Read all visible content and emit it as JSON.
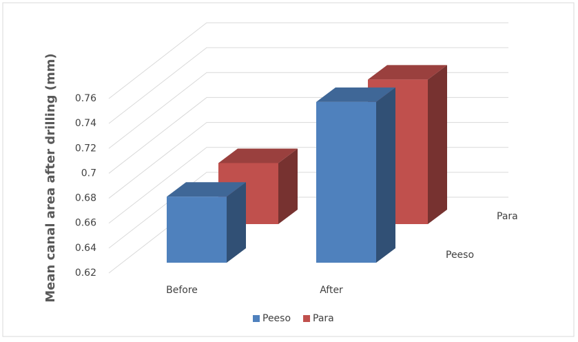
{
  "chart_data": {
    "type": "bar3d",
    "y_label": "Mean canal area after drilling (mm)",
    "categories": [
      "Before",
      "After"
    ],
    "series": [
      {
        "name": "Peeso",
        "color": "#4f81bd",
        "values": [
          0.673,
          0.749
        ]
      },
      {
        "name": "Para",
        "color": "#c0504d",
        "values": [
          0.669,
          0.736
        ]
      }
    ],
    "ylim": [
      0.62,
      0.76
    ],
    "yticks": [
      0.62,
      0.64,
      0.66,
      0.68,
      0.7,
      0.72,
      0.74,
      0.76
    ],
    "grid": true
  }
}
